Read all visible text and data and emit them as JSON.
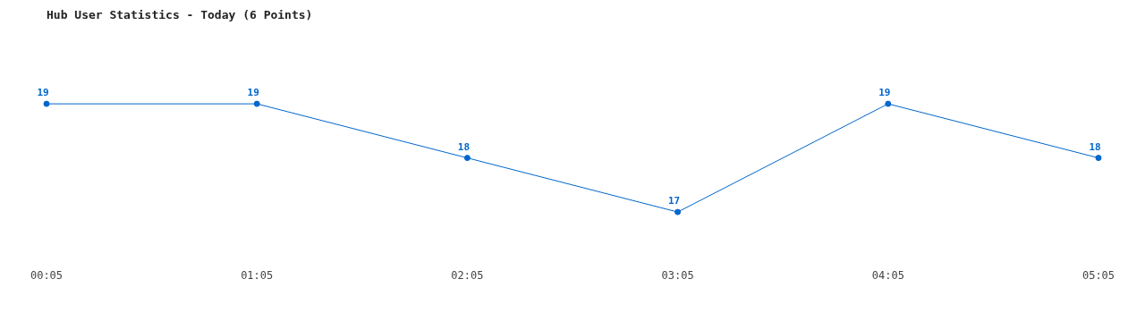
{
  "chart_data": {
    "type": "line",
    "title": "Hub User Statistics - Today (6 Points)",
    "categories": [
      "00:05",
      "01:05",
      "02:05",
      "03:05",
      "04:05",
      "05:05"
    ],
    "series": [
      {
        "color": "#0066cc",
        "values": [
          19,
          19,
          18,
          17,
          19,
          18
        ]
      }
    ],
    "tick_labels": "x",
    "data_labels": true,
    "grid": false,
    "legend": false,
    "marker": "circle",
    "line_style": "solid"
  }
}
